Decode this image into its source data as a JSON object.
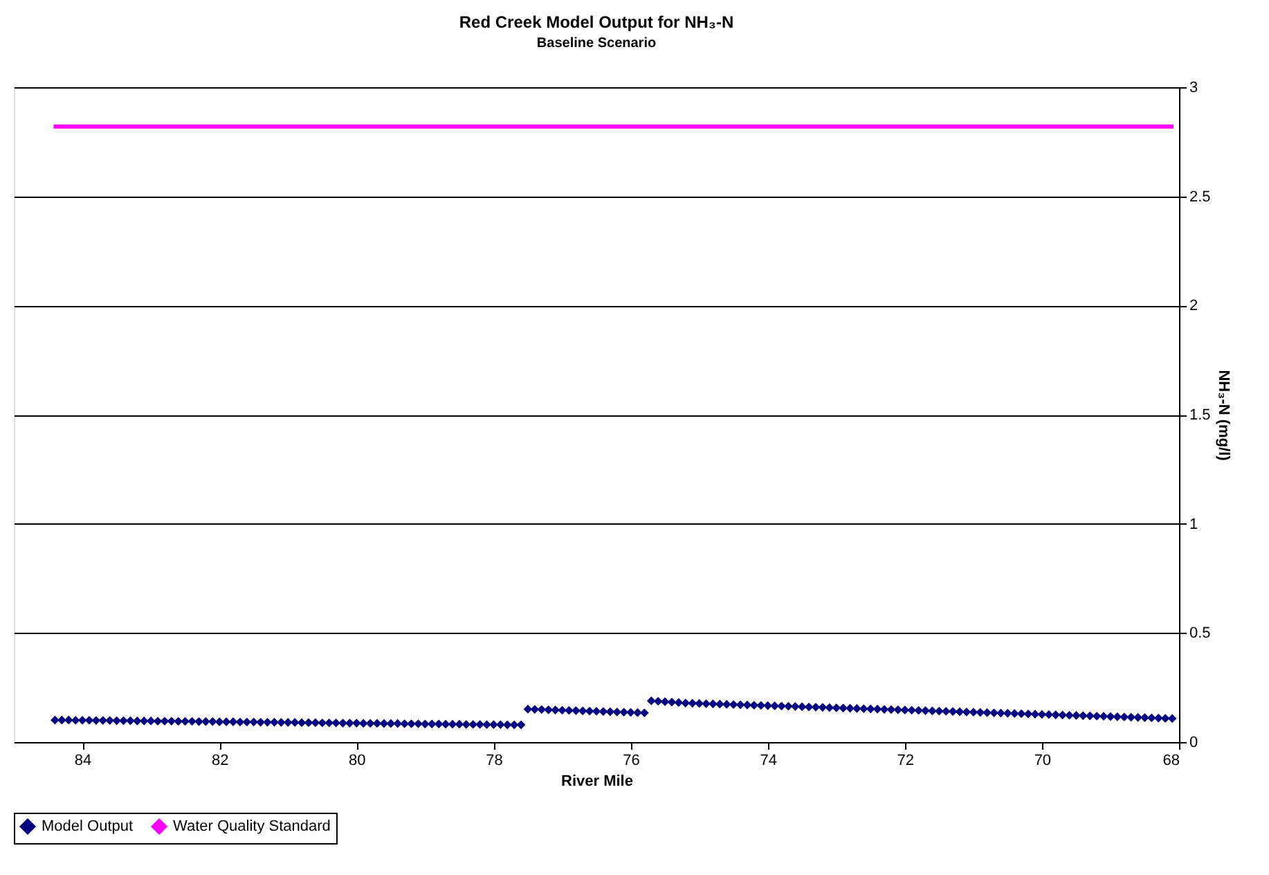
{
  "chart_data": {
    "type": "scatter",
    "title": "Red Creek Model Output for NH₃-N",
    "subtitle": "Baseline Scenario",
    "xlabel": "River Mile",
    "ylabel": "NH₃-N (mg/l)",
    "xlim": [
      85,
      68
    ],
    "xticks": [
      84,
      82,
      80,
      78,
      76,
      74,
      72,
      70,
      68
    ],
    "ylim": [
      0,
      3
    ],
    "yticks": [
      0,
      0.5,
      1,
      1.5,
      2,
      2.5,
      3
    ],
    "grid": "y",
    "legend": "bottom",
    "series": [
      {
        "name": "Model Output",
        "marker": "diamond",
        "color": "#000080",
        "x": [
          84.4,
          84.3,
          84.2,
          84.1,
          84.0,
          83.9,
          83.8,
          83.7,
          83.6,
          83.5,
          83.4,
          83.3,
          83.2,
          83.1,
          83.0,
          82.9,
          82.8,
          82.7,
          82.6,
          82.5,
          82.4,
          82.3,
          82.2,
          82.1,
          82.0,
          81.9,
          81.8,
          81.7,
          81.6,
          81.5,
          81.4,
          81.3,
          81.2,
          81.1,
          81.0,
          80.9,
          80.8,
          80.7,
          80.6,
          80.5,
          80.4,
          80.3,
          80.2,
          80.1,
          80.0,
          79.9,
          79.8,
          79.7,
          79.6,
          79.5,
          79.4,
          79.3,
          79.2,
          79.1,
          79.0,
          78.9,
          78.8,
          78.7,
          78.6,
          78.5,
          78.4,
          78.3,
          78.2,
          78.1,
          78.0,
          77.9,
          77.8,
          77.7,
          77.6,
          77.5,
          77.4,
          77.3,
          77.2,
          77.1,
          77.0,
          76.9,
          76.8,
          76.7,
          76.6,
          76.5,
          76.4,
          76.3,
          76.2,
          76.1,
          76.0,
          75.9,
          75.8,
          75.7,
          75.6,
          75.5,
          75.4,
          75.3,
          75.2,
          75.1,
          75.0,
          74.9,
          74.8,
          74.7,
          74.6,
          74.5,
          74.4,
          74.3,
          74.2,
          74.1,
          74.0,
          73.9,
          73.8,
          73.7,
          73.6,
          73.5,
          73.4,
          73.3,
          73.2,
          73.1,
          73.0,
          72.9,
          72.8,
          72.7,
          72.6,
          72.5,
          72.4,
          72.3,
          72.2,
          72.1,
          72.0,
          71.9,
          71.8,
          71.7,
          71.6,
          71.5,
          71.4,
          71.3,
          71.2,
          71.1,
          71.0,
          70.9,
          70.8,
          70.7,
          70.6,
          70.5,
          70.4,
          70.3,
          70.2,
          70.1,
          70.0,
          69.9,
          69.8,
          69.7,
          69.6,
          69.5,
          69.4,
          69.3,
          69.2,
          69.1,
          69.0,
          68.9,
          68.8,
          68.7,
          68.6,
          68.5,
          68.4,
          68.3,
          68.2,
          68.1
        ],
        "values": [
          0.101,
          0.101,
          0.101,
          0.1,
          0.1,
          0.1,
          0.099,
          0.099,
          0.099,
          0.098,
          0.098,
          0.098,
          0.097,
          0.097,
          0.097,
          0.096,
          0.096,
          0.096,
          0.095,
          0.095,
          0.095,
          0.094,
          0.094,
          0.094,
          0.093,
          0.093,
          0.093,
          0.092,
          0.092,
          0.092,
          0.091,
          0.091,
          0.091,
          0.09,
          0.09,
          0.09,
          0.089,
          0.089,
          0.089,
          0.088,
          0.088,
          0.088,
          0.087,
          0.087,
          0.087,
          0.086,
          0.086,
          0.086,
          0.085,
          0.085,
          0.085,
          0.084,
          0.084,
          0.084,
          0.083,
          0.083,
          0.083,
          0.082,
          0.082,
          0.082,
          0.081,
          0.081,
          0.081,
          0.08,
          0.08,
          0.08,
          0.079,
          0.079,
          0.079,
          0.151,
          0.15,
          0.149,
          0.148,
          0.147,
          0.146,
          0.145,
          0.144,
          0.143,
          0.142,
          0.141,
          0.14,
          0.139,
          0.138,
          0.137,
          0.136,
          0.135,
          0.134,
          0.189,
          0.187,
          0.185,
          0.183,
          0.181,
          0.179,
          0.178,
          0.177,
          0.176,
          0.175,
          0.174,
          0.173,
          0.172,
          0.171,
          0.17,
          0.169,
          0.168,
          0.167,
          0.166,
          0.165,
          0.164,
          0.163,
          0.162,
          0.161,
          0.16,
          0.159,
          0.158,
          0.157,
          0.156,
          0.155,
          0.154,
          0.153,
          0.152,
          0.151,
          0.15,
          0.149,
          0.148,
          0.147,
          0.146,
          0.145,
          0.144,
          0.143,
          0.142,
          0.141,
          0.14,
          0.139,
          0.138,
          0.137,
          0.136,
          0.135,
          0.134,
          0.133,
          0.132,
          0.131,
          0.13,
          0.129,
          0.128,
          0.127,
          0.126,
          0.125,
          0.124,
          0.123,
          0.122,
          0.121,
          0.12,
          0.119,
          0.118,
          0.117,
          0.116,
          0.115,
          0.114,
          0.113,
          0.112,
          0.111,
          0.11,
          0.109,
          0.108
        ]
      },
      {
        "name": "Water Quality Standard",
        "type": "line",
        "line_style": "solid",
        "color": "#ff00ff",
        "x": [
          84.42,
          68.08
        ],
        "values": [
          2.82,
          2.82
        ]
      }
    ]
  }
}
